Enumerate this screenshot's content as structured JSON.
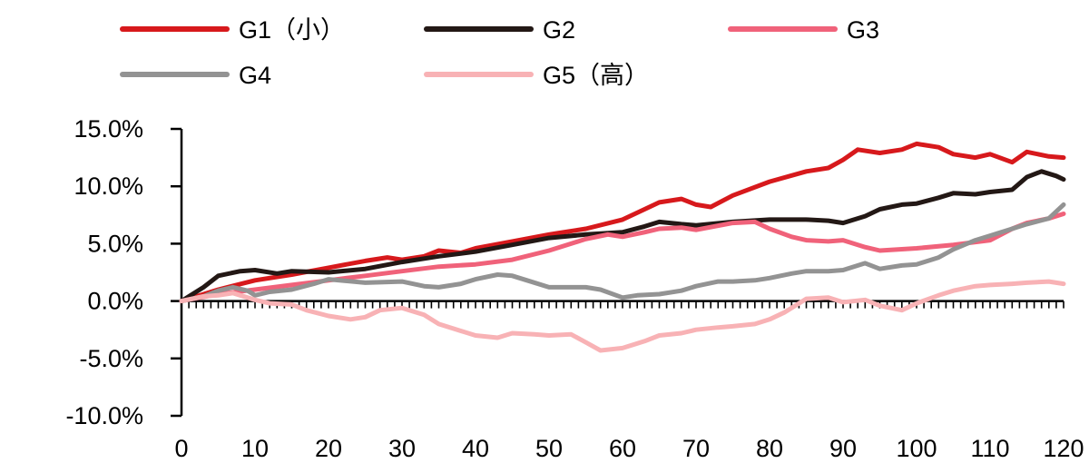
{
  "chart_data": {
    "type": "line",
    "title": "",
    "xlabel": "",
    "ylabel": "",
    "xlim": [
      0,
      120
    ],
    "ylim": [
      -10,
      15
    ],
    "grid": false,
    "legend_position": "top",
    "x_tick_labels": [
      "0",
      "10",
      "20",
      "30",
      "40",
      "50",
      "60",
      "70",
      "80",
      "90",
      "100",
      "110",
      "120"
    ],
    "x_tick_values": [
      0,
      10,
      20,
      30,
      40,
      50,
      60,
      70,
      80,
      90,
      100,
      110,
      120
    ],
    "y_tick_labels": [
      "15.0%",
      "10.0%",
      "5.0%",
      "0.0%",
      "-5.0%",
      "-10.0%"
    ],
    "y_tick_values": [
      15,
      10,
      5,
      0,
      -5,
      -10
    ],
    "series": [
      {
        "name": "G1（小）",
        "color": "#d7191c",
        "points": [
          [
            0,
            0
          ],
          [
            5,
            1.0
          ],
          [
            10,
            1.8
          ],
          [
            15,
            2.3
          ],
          [
            20,
            2.9
          ],
          [
            25,
            3.5
          ],
          [
            28,
            3.8
          ],
          [
            30,
            3.6
          ],
          [
            33,
            3.9
          ],
          [
            35,
            4.4
          ],
          [
            38,
            4.2
          ],
          [
            40,
            4.6
          ],
          [
            45,
            5.2
          ],
          [
            50,
            5.8
          ],
          [
            55,
            6.3
          ],
          [
            60,
            7.1
          ],
          [
            63,
            8.0
          ],
          [
            65,
            8.6
          ],
          [
            68,
            8.9
          ],
          [
            70,
            8.4
          ],
          [
            72,
            8.2
          ],
          [
            75,
            9.2
          ],
          [
            80,
            10.4
          ],
          [
            85,
            11.3
          ],
          [
            88,
            11.6
          ],
          [
            90,
            12.3
          ],
          [
            92,
            13.2
          ],
          [
            95,
            12.9
          ],
          [
            98,
            13.2
          ],
          [
            100,
            13.7
          ],
          [
            103,
            13.4
          ],
          [
            105,
            12.8
          ],
          [
            108,
            12.5
          ],
          [
            110,
            12.8
          ],
          [
            113,
            12.1
          ],
          [
            115,
            13.0
          ],
          [
            118,
            12.6
          ],
          [
            120,
            12.5
          ]
        ]
      },
      {
        "name": "G2",
        "color": "#231815",
        "points": [
          [
            0,
            0
          ],
          [
            3,
            1.2
          ],
          [
            5,
            2.2
          ],
          [
            8,
            2.6
          ],
          [
            10,
            2.7
          ],
          [
            13,
            2.4
          ],
          [
            15,
            2.6
          ],
          [
            20,
            2.5
          ],
          [
            25,
            2.8
          ],
          [
            30,
            3.4
          ],
          [
            35,
            3.9
          ],
          [
            40,
            4.3
          ],
          [
            45,
            4.9
          ],
          [
            50,
            5.5
          ],
          [
            55,
            5.8
          ],
          [
            60,
            6.0
          ],
          [
            63,
            6.5
          ],
          [
            65,
            6.9
          ],
          [
            68,
            6.7
          ],
          [
            70,
            6.6
          ],
          [
            75,
            6.9
          ],
          [
            80,
            7.1
          ],
          [
            85,
            7.1
          ],
          [
            88,
            7.0
          ],
          [
            90,
            6.8
          ],
          [
            93,
            7.4
          ],
          [
            95,
            8.0
          ],
          [
            98,
            8.4
          ],
          [
            100,
            8.5
          ],
          [
            103,
            9.0
          ],
          [
            105,
            9.4
          ],
          [
            108,
            9.3
          ],
          [
            110,
            9.5
          ],
          [
            113,
            9.7
          ],
          [
            115,
            10.8
          ],
          [
            117,
            11.3
          ],
          [
            119,
            10.9
          ],
          [
            120,
            10.6
          ]
        ]
      },
      {
        "name": "G3",
        "color": "#f0627a",
        "points": [
          [
            0,
            0
          ],
          [
            5,
            0.6
          ],
          [
            10,
            1.0
          ],
          [
            15,
            1.4
          ],
          [
            20,
            1.8
          ],
          [
            25,
            2.2
          ],
          [
            30,
            2.6
          ],
          [
            35,
            3.0
          ],
          [
            40,
            3.2
          ],
          [
            45,
            3.6
          ],
          [
            50,
            4.4
          ],
          [
            55,
            5.4
          ],
          [
            58,
            5.8
          ],
          [
            60,
            5.6
          ],
          [
            63,
            6.0
          ],
          [
            65,
            6.3
          ],
          [
            68,
            6.4
          ],
          [
            70,
            6.2
          ],
          [
            75,
            6.8
          ],
          [
            78,
            6.9
          ],
          [
            80,
            6.3
          ],
          [
            83,
            5.6
          ],
          [
            85,
            5.3
          ],
          [
            88,
            5.2
          ],
          [
            90,
            5.3
          ],
          [
            93,
            4.7
          ],
          [
            95,
            4.4
          ],
          [
            100,
            4.6
          ],
          [
            105,
            4.9
          ],
          [
            110,
            5.3
          ],
          [
            113,
            6.3
          ],
          [
            115,
            6.8
          ],
          [
            118,
            7.2
          ],
          [
            120,
            7.6
          ]
        ]
      },
      {
        "name": "G4",
        "color": "#939393",
        "points": [
          [
            0,
            0
          ],
          [
            3,
            0.4
          ],
          [
            5,
            0.9
          ],
          [
            7,
            1.2
          ],
          [
            9,
            0.9
          ],
          [
            10,
            0.5
          ],
          [
            12,
            0.8
          ],
          [
            15,
            1.0
          ],
          [
            18,
            1.5
          ],
          [
            20,
            1.9
          ],
          [
            25,
            1.6
          ],
          [
            30,
            1.7
          ],
          [
            33,
            1.3
          ],
          [
            35,
            1.2
          ],
          [
            38,
            1.5
          ],
          [
            40,
            1.9
          ],
          [
            43,
            2.3
          ],
          [
            45,
            2.2
          ],
          [
            47,
            1.8
          ],
          [
            50,
            1.2
          ],
          [
            53,
            1.2
          ],
          [
            55,
            1.2
          ],
          [
            57,
            1.0
          ],
          [
            60,
            0.3
          ],
          [
            62,
            0.5
          ],
          [
            65,
            0.6
          ],
          [
            68,
            0.9
          ],
          [
            70,
            1.3
          ],
          [
            73,
            1.7
          ],
          [
            75,
            1.7
          ],
          [
            78,
            1.8
          ],
          [
            80,
            2.0
          ],
          [
            83,
            2.4
          ],
          [
            85,
            2.6
          ],
          [
            88,
            2.6
          ],
          [
            90,
            2.7
          ],
          [
            93,
            3.3
          ],
          [
            95,
            2.8
          ],
          [
            98,
            3.1
          ],
          [
            100,
            3.2
          ],
          [
            103,
            3.8
          ],
          [
            105,
            4.5
          ],
          [
            108,
            5.3
          ],
          [
            110,
            5.7
          ],
          [
            113,
            6.3
          ],
          [
            115,
            6.7
          ],
          [
            118,
            7.2
          ],
          [
            120,
            8.4
          ]
        ]
      },
      {
        "name": "G5（高）",
        "color": "#f8b2b5",
        "points": [
          [
            0,
            0
          ],
          [
            3,
            0.4
          ],
          [
            5,
            0.5
          ],
          [
            7,
            0.7
          ],
          [
            9,
            0.3
          ],
          [
            10,
            0.1
          ],
          [
            12,
            -0.2
          ],
          [
            15,
            -0.3
          ],
          [
            17,
            -0.8
          ],
          [
            20,
            -1.3
          ],
          [
            23,
            -1.6
          ],
          [
            25,
            -1.4
          ],
          [
            27,
            -0.8
          ],
          [
            30,
            -0.6
          ],
          [
            33,
            -1.2
          ],
          [
            35,
            -2.0
          ],
          [
            38,
            -2.6
          ],
          [
            40,
            -3.0
          ],
          [
            43,
            -3.2
          ],
          [
            45,
            -2.8
          ],
          [
            48,
            -2.9
          ],
          [
            50,
            -3.0
          ],
          [
            53,
            -2.9
          ],
          [
            55,
            -3.6
          ],
          [
            57,
            -4.3
          ],
          [
            60,
            -4.1
          ],
          [
            63,
            -3.5
          ],
          [
            65,
            -3.0
          ],
          [
            68,
            -2.8
          ],
          [
            70,
            -2.5
          ],
          [
            73,
            -2.3
          ],
          [
            75,
            -2.2
          ],
          [
            78,
            -2.0
          ],
          [
            80,
            -1.6
          ],
          [
            82,
            -1.0
          ],
          [
            85,
            0.2
          ],
          [
            88,
            0.3
          ],
          [
            90,
            -0.1
          ],
          [
            93,
            0.1
          ],
          [
            95,
            -0.4
          ],
          [
            98,
            -0.8
          ],
          [
            100,
            -0.2
          ],
          [
            103,
            0.5
          ],
          [
            105,
            0.9
          ],
          [
            108,
            1.3
          ],
          [
            110,
            1.4
          ],
          [
            113,
            1.5
          ],
          [
            115,
            1.6
          ],
          [
            118,
            1.7
          ],
          [
            120,
            1.5
          ]
        ]
      }
    ]
  }
}
